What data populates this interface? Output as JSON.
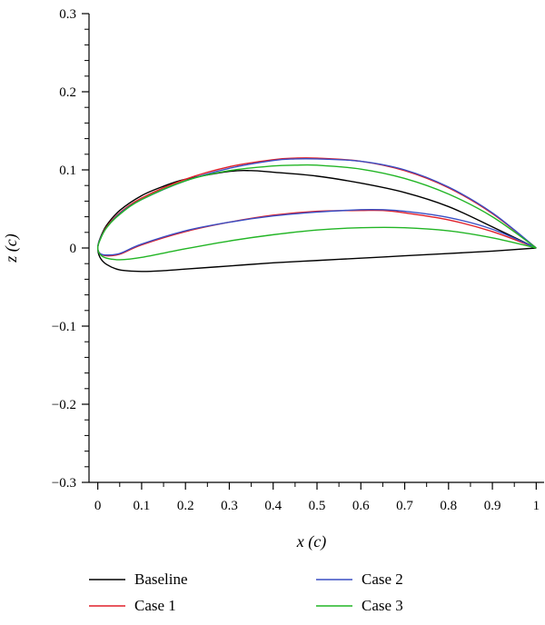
{
  "chart_data": {
    "type": "line",
    "title": "",
    "xlabel": "x (c)",
    "ylabel": "z (c)",
    "xlim": [
      -0.02,
      1.02
    ],
    "ylim": [
      -0.3,
      0.3
    ],
    "x_ticks": [
      0,
      0.1,
      0.2,
      0.3,
      0.4,
      0.5,
      0.6,
      0.7,
      0.8,
      0.9,
      1
    ],
    "x_tick_labels": [
      "0",
      "0.1",
      "0.2",
      "0.3",
      "0.4",
      "0.5",
      "0.6",
      "0.7",
      "0.8",
      "0.9",
      "1"
    ],
    "y_ticks": [
      -0.3,
      -0.2,
      -0.1,
      0,
      0.1,
      0.2,
      0.3
    ],
    "y_tick_labels": [
      "−0.3",
      "−0.2",
      "−0.1",
      "0",
      "0.1",
      "0.2",
      "0.3"
    ],
    "grid": false,
    "legend_position": "bottom",
    "series": [
      {
        "name": "Baseline",
        "color": "#000000",
        "x": [
          1.0,
          0.9,
          0.8,
          0.7,
          0.6,
          0.5,
          0.4,
          0.35,
          0.3,
          0.2,
          0.15,
          0.1,
          0.05,
          0.02,
          0.005,
          0.0,
          0.005,
          0.02,
          0.05,
          0.1,
          0.15,
          0.2,
          0.3,
          0.4,
          0.5,
          0.6,
          0.7,
          0.8,
          0.9,
          1.0
        ],
        "y": [
          0.0,
          0.027,
          0.053,
          0.071,
          0.083,
          0.092,
          0.097,
          0.099,
          0.098,
          0.088,
          0.079,
          0.067,
          0.048,
          0.029,
          0.012,
          0.0,
          -0.012,
          -0.021,
          -0.028,
          -0.03,
          -0.029,
          -0.027,
          -0.023,
          -0.019,
          -0.016,
          -0.013,
          -0.01,
          -0.007,
          -0.004,
          0.0
        ]
      },
      {
        "name": "Case 1",
        "color": "#e0202a",
        "x": [
          1.0,
          0.9,
          0.8,
          0.7,
          0.6,
          0.5,
          0.45,
          0.4,
          0.3,
          0.2,
          0.1,
          0.05,
          0.02,
          0.005,
          0.0,
          0.005,
          0.02,
          0.05,
          0.1,
          0.2,
          0.3,
          0.4,
          0.5,
          0.6,
          0.65,
          0.7,
          0.8,
          0.9,
          1.0
        ],
        "y": [
          0.0,
          0.044,
          0.077,
          0.099,
          0.111,
          0.115,
          0.115,
          0.113,
          0.104,
          0.088,
          0.064,
          0.045,
          0.027,
          0.011,
          0.0,
          -0.007,
          -0.01,
          -0.008,
          0.004,
          0.021,
          0.033,
          0.042,
          0.047,
          0.048,
          0.048,
          0.045,
          0.036,
          0.021,
          0.0
        ]
      },
      {
        "name": "Case 2",
        "color": "#3a4fc4",
        "x": [
          1.0,
          0.9,
          0.8,
          0.7,
          0.6,
          0.5,
          0.45,
          0.4,
          0.3,
          0.2,
          0.1,
          0.05,
          0.02,
          0.005,
          0.0,
          0.005,
          0.02,
          0.05,
          0.1,
          0.2,
          0.3,
          0.4,
          0.5,
          0.6,
          0.65,
          0.7,
          0.8,
          0.9,
          1.0
        ],
        "y": [
          0.0,
          0.045,
          0.078,
          0.1,
          0.111,
          0.114,
          0.114,
          0.112,
          0.102,
          0.086,
          0.062,
          0.044,
          0.026,
          0.011,
          0.0,
          -0.007,
          -0.009,
          -0.007,
          0.005,
          0.022,
          0.033,
          0.041,
          0.046,
          0.049,
          0.049,
          0.047,
          0.039,
          0.024,
          0.0
        ]
      },
      {
        "name": "Case 3",
        "color": "#22b525",
        "x": [
          1.0,
          0.9,
          0.8,
          0.7,
          0.6,
          0.5,
          0.45,
          0.4,
          0.3,
          0.2,
          0.1,
          0.05,
          0.02,
          0.005,
          0.0,
          0.005,
          0.02,
          0.05,
          0.1,
          0.2,
          0.3,
          0.4,
          0.5,
          0.6,
          0.7,
          0.8,
          0.9,
          1.0
        ],
        "y": [
          0.0,
          0.04,
          0.069,
          0.089,
          0.101,
          0.106,
          0.106,
          0.105,
          0.099,
          0.086,
          0.062,
          0.043,
          0.026,
          0.01,
          0.0,
          -0.008,
          -0.013,
          -0.015,
          -0.012,
          -0.001,
          0.009,
          0.017,
          0.023,
          0.026,
          0.026,
          0.022,
          0.013,
          0.0
        ]
      }
    ]
  }
}
